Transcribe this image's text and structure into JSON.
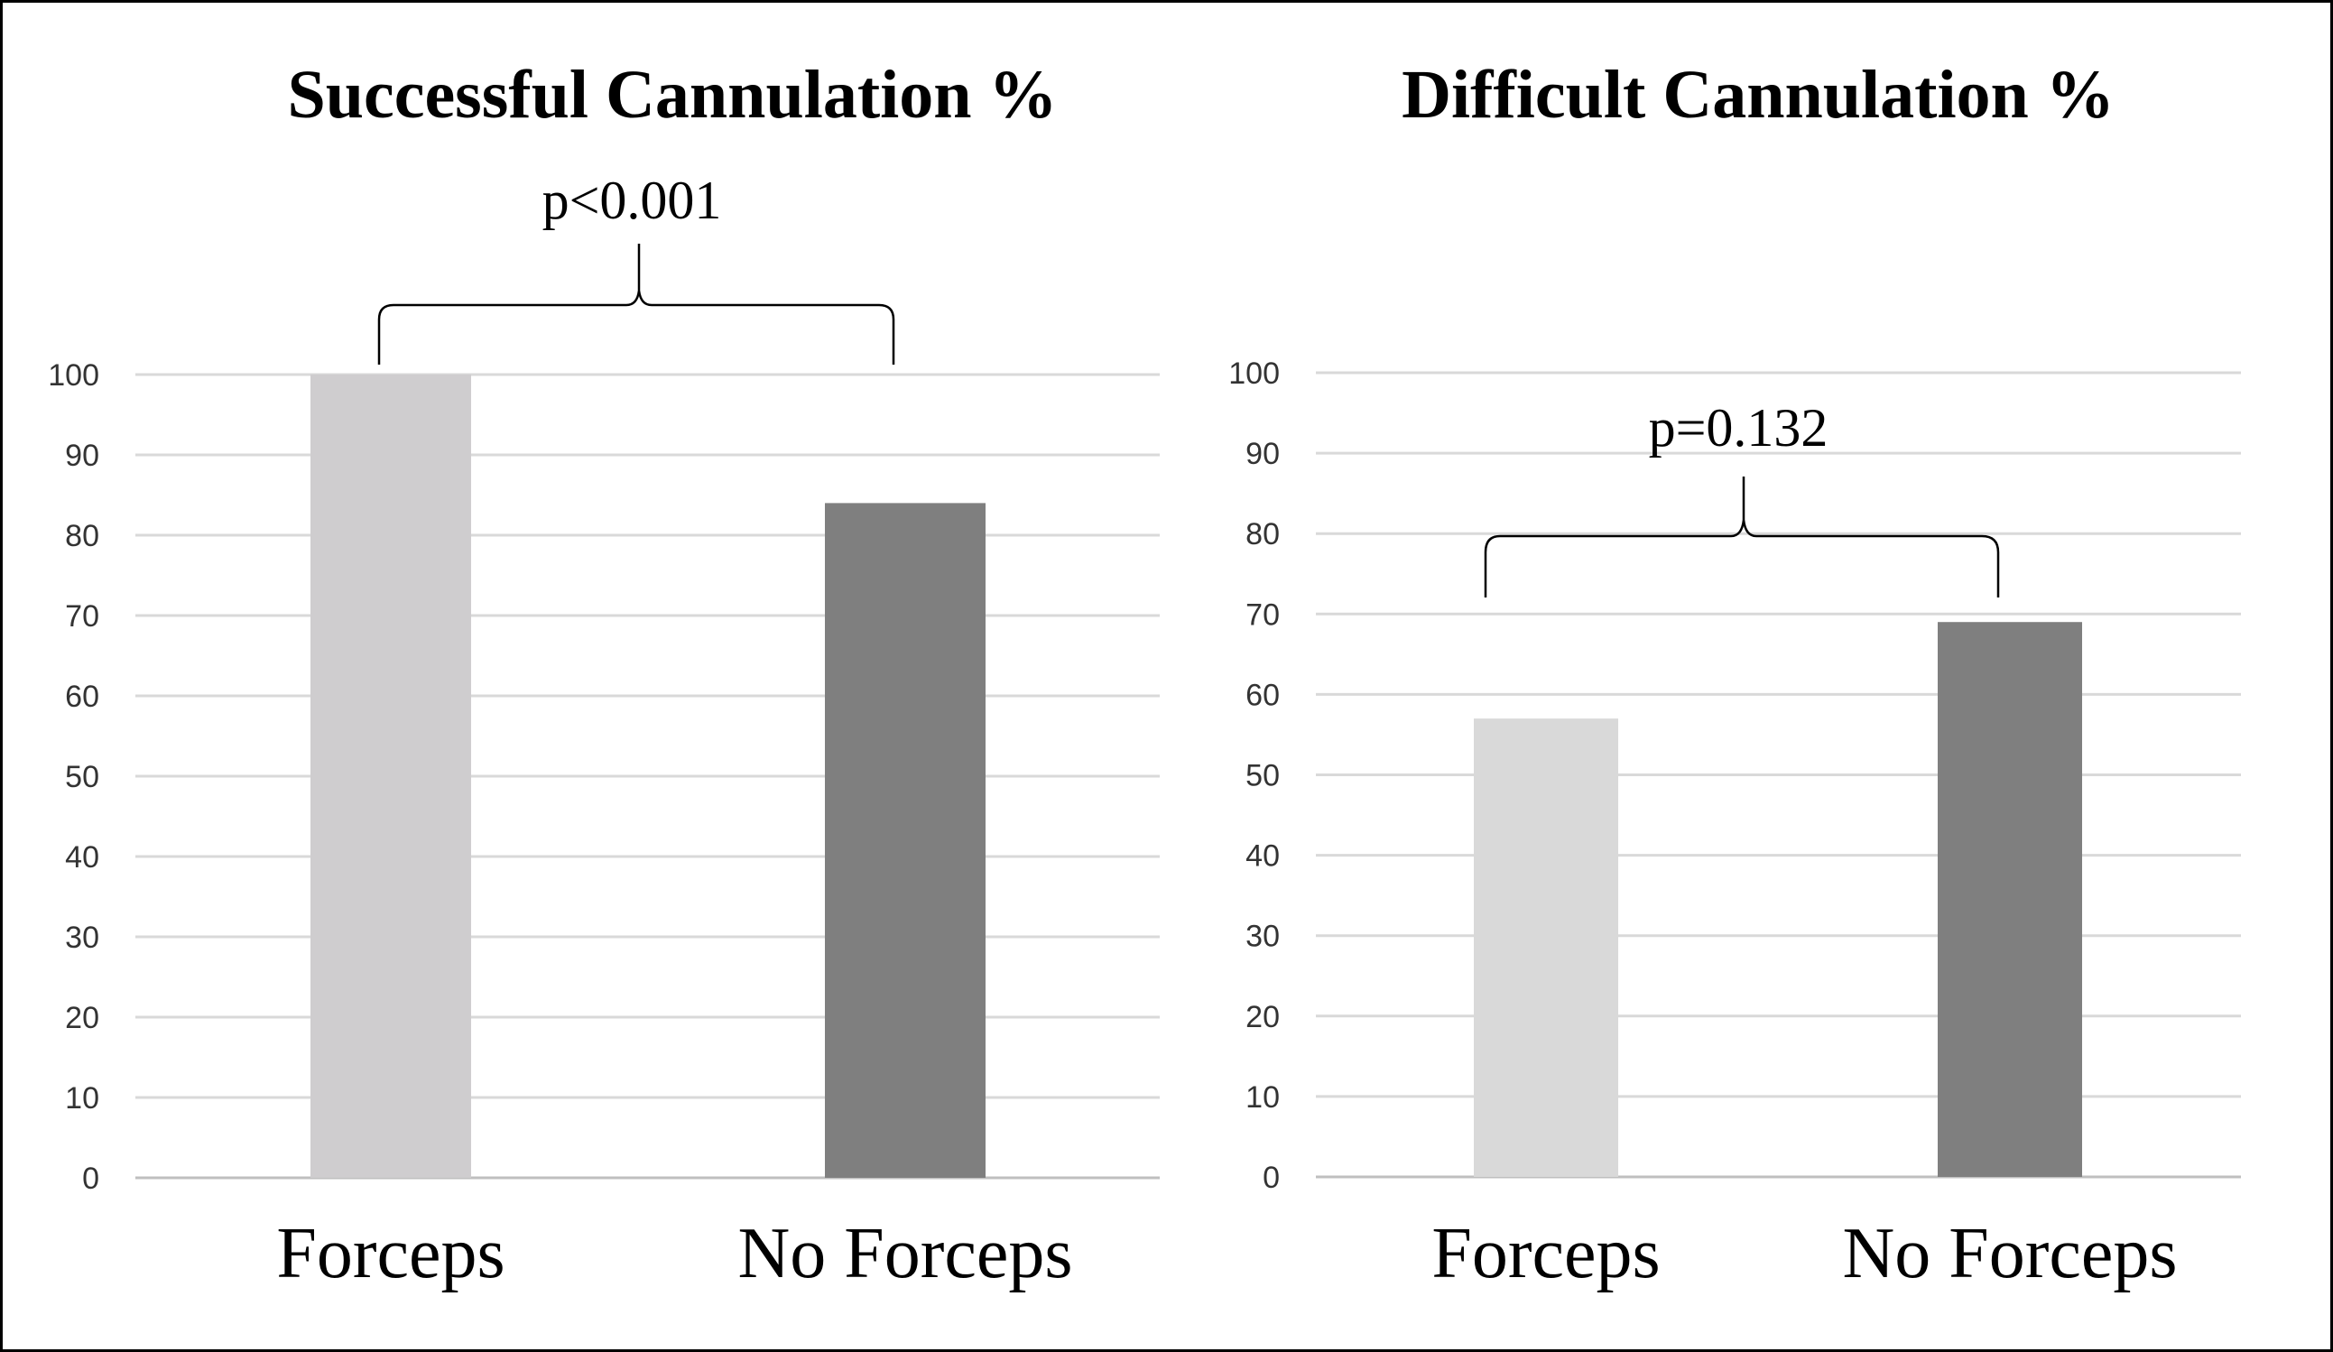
{
  "chart_data": [
    {
      "type": "bar",
      "title": "Successful Cannulation %",
      "categories": [
        "Forceps",
        "No Forceps"
      ],
      "values": [
        100,
        84
      ],
      "colors": [
        "#cfcdcf",
        "#7f7f7f"
      ],
      "ylim": [
        0,
        100
      ],
      "yticks": [
        "0",
        "10",
        "20",
        "30",
        "40",
        "50",
        "60",
        "70",
        "80",
        "90",
        "100"
      ],
      "grid": true,
      "annotation": "p<0.001"
    },
    {
      "type": "bar",
      "title": "Difficult Cannulation %",
      "categories": [
        "Forceps",
        "No Forceps"
      ],
      "values": [
        57,
        69
      ],
      "colors": [
        "#d9d9d9",
        "#7f7f7f"
      ],
      "ylim": [
        0,
        100
      ],
      "yticks": [
        "0",
        "10",
        "20",
        "30",
        "40",
        "50",
        "60",
        "70",
        "80",
        "90",
        "100"
      ],
      "grid": true,
      "annotation": "p=0.132"
    }
  ],
  "colors": {
    "gridline": "#d9d9d9",
    "frame": "#000000",
    "tick_text": "#333333"
  }
}
